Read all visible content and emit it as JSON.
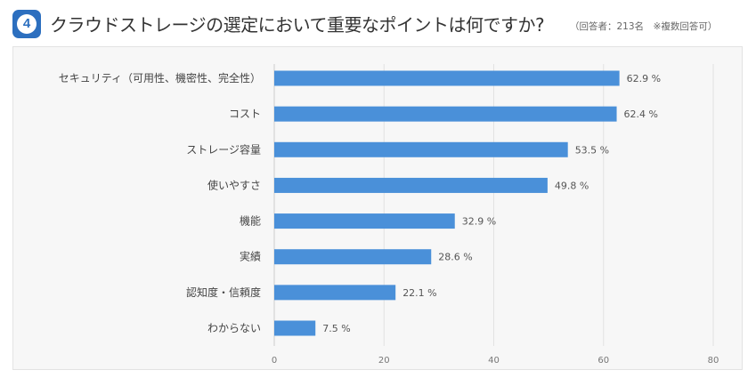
{
  "header": {
    "badge_number": "4",
    "title": "クラウドストレージの選定において重要なポイントは何ですか?",
    "note": "（回答者：213名　※複数回答可）"
  },
  "colors": {
    "bar": "#4a90d9",
    "badge": "#2c6fbf"
  },
  "chart_data": {
    "type": "bar",
    "orientation": "horizontal",
    "title": "クラウドストレージの選定において重要なポイントは何ですか?",
    "categories": [
      "セキュリティ（可用性、機密性、完全性）",
      "コスト",
      "ストレージ容量",
      "使いやすさ",
      "機能",
      "実績",
      "認知度・信頼度",
      "わからない"
    ],
    "values": [
      62.9,
      62.4,
      53.5,
      49.8,
      32.9,
      28.6,
      22.1,
      7.5
    ],
    "value_labels": [
      "62.9 %",
      "62.4 %",
      "53.5 %",
      "49.8 %",
      "32.9 %",
      "28.6 %",
      "22.1 %",
      "7.5 %"
    ],
    "xlim": [
      0,
      80
    ],
    "xticks": [
      0,
      20,
      40,
      60,
      80
    ],
    "unit": "%",
    "xlabel": "",
    "ylabel": ""
  }
}
